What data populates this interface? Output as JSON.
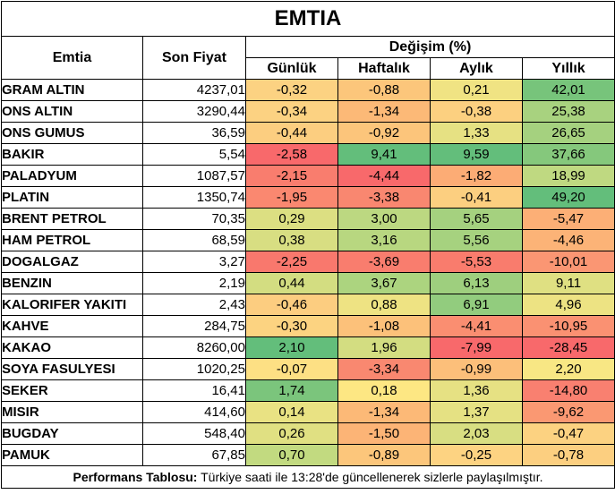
{
  "title": "EMTIA",
  "headers": {
    "emtia": "Emtia",
    "son_fiyat": "Son Fiyat",
    "degisim": "Değişim (%)",
    "gunluk": "Günlük",
    "haftalik": "Haftalık",
    "aylik": "Aylık",
    "yillik": "Yıllık"
  },
  "rows": [
    {
      "name": "GRAM ALTIN",
      "price": "4237,01",
      "g": "-0,32",
      "h": "-0,88",
      "a": "0,21",
      "y": "42,01",
      "gc": "#fcd282",
      "hc": "#fcc67b",
      "ac": "#f0e383",
      "yc": "#77c47b"
    },
    {
      "name": "ONS ALTIN",
      "price": "3290,44",
      "g": "-0,34",
      "h": "-1,34",
      "a": "-0,38",
      "y": "25,38",
      "gc": "#fcd282",
      "hc": "#fcb977",
      "ac": "#fcd080",
      "yc": "#a8d27f"
    },
    {
      "name": "ONS GUMUS",
      "price": "36,59",
      "g": "-0,44",
      "h": "-0,92",
      "a": "1,33",
      "y": "26,65",
      "gc": "#fcce80",
      "hc": "#fcc57b",
      "ac": "#e6e183",
      "yc": "#a5d17f"
    },
    {
      "name": "BAKIR",
      "price": "5,54",
      "g": "-2,58",
      "h": "9,41",
      "a": "9,59",
      "y": "37,66",
      "gc": "#f8696b",
      "hc": "#63be7b",
      "ac": "#63be7b",
      "yc": "#85c87c"
    },
    {
      "name": "PALADYUM",
      "price": "1087,57",
      "g": "-2,15",
      "h": "-4,44",
      "a": "-1,82",
      "y": "18,99",
      "gc": "#f97d6e",
      "hc": "#f8696b",
      "ac": "#fcac75",
      "yc": "#bfd981"
    },
    {
      "name": "PLATIN",
      "price": "1350,74",
      "g": "-1,95",
      "h": "-3,38",
      "a": "-0,41",
      "y": "49,20",
      "gc": "#fa8870",
      "hc": "#f98770",
      "ac": "#fccf80",
      "yc": "#63be7b"
    },
    {
      "name": "BRENT PETROL",
      "price": "70,35",
      "g": "0,29",
      "h": "3,00",
      "a": "5,65",
      "y": "-5,47",
      "gc": "#dcdf82",
      "hc": "#bcd881",
      "ac": "#a5d17f",
      "yc": "#fcaf76"
    },
    {
      "name": "HAM PETROL",
      "price": "68,59",
      "g": "0,38",
      "h": "3,16",
      "a": "5,56",
      "y": "-4,46",
      "gc": "#d8de82",
      "hc": "#b8d780",
      "ac": "#a6d27f",
      "yc": "#fcb377"
    },
    {
      "name": "DOGALGAZ",
      "price": "3,27",
      "g": "-2,25",
      "h": "-3,69",
      "a": "-5,53",
      "y": "-10,01",
      "gc": "#f9786d",
      "hc": "#f97d6e",
      "ac": "#f97c6d",
      "yc": "#fa9673"
    },
    {
      "name": "BENZIN",
      "price": "2,19",
      "g": "0,44",
      "h": "3,67",
      "a": "6,13",
      "y": "9,11",
      "gc": "#d3dd81",
      "hc": "#acd47f",
      "ac": "#9ecf7e",
      "yc": "#dfe082"
    },
    {
      "name": "KALORIFER YAKITI",
      "price": "2,43",
      "g": "-0,46",
      "h": "0,88",
      "a": "6,91",
      "y": "4,96",
      "gc": "#fccd80",
      "hc": "#eee383",
      "ac": "#92cc7e",
      "yc": "#ede383"
    },
    {
      "name": "KAHVE",
      "price": "284,75",
      "g": "-0,30",
      "h": "-1,08",
      "a": "-4,41",
      "y": "-10,95",
      "gc": "#fcd381",
      "hc": "#fcc17a",
      "ac": "#fa8e71",
      "yc": "#fa9172"
    },
    {
      "name": "KAKAO",
      "price": "8260,00",
      "g": "2,10",
      "h": "1,96",
      "a": "-7,99",
      "y": "-28,45",
      "gc": "#63be7b",
      "hc": "#d3dd81",
      "ac": "#f8696b",
      "yc": "#f8696b"
    },
    {
      "name": "SOYA FASULYESI",
      "price": "1020,25",
      "g": "-0,07",
      "h": "-3,34",
      "a": "-0,99",
      "y": "2,20",
      "gc": "#fde084",
      "hc": "#f98870",
      "ac": "#fcbf7a",
      "yc": "#f8e784"
    },
    {
      "name": "SEKER",
      "price": "16,41",
      "g": "1,74",
      "h": "0,18",
      "a": "1,36",
      "y": "-14,80",
      "gc": "#7bc57c",
      "hc": "#fde783",
      "ac": "#e6e183",
      "yc": "#f98070"
    },
    {
      "name": "MISIR",
      "price": "414,60",
      "g": "0,14",
      "h": "-1,34",
      "a": "1,37",
      "y": "-9,62",
      "gc": "#e9e283",
      "hc": "#fcb977",
      "ac": "#e5e183",
      "yc": "#fa9872"
    },
    {
      "name": "BUGDAY",
      "price": "548,40",
      "g": "0,26",
      "h": "-1,50",
      "a": "2,03",
      "y": "-0,47",
      "gc": "#e0e082",
      "hc": "#fcb476",
      "ac": "#d8de82",
      "yc": "#fcd281"
    },
    {
      "name": "PAMUK",
      "price": "67,85",
      "g": "0,70",
      "h": "-0,89",
      "a": "-0,25",
      "y": "-0,78",
      "gc": "#c2da80",
      "hc": "#fcc67b",
      "ac": "#fdd382",
      "yc": "#fccf80"
    }
  ],
  "footer": {
    "label": "Performans Tablosu:",
    "text": " Türkiye saati ile 13:28'de güncellenerek sizlerle paylaşılmıştır."
  }
}
